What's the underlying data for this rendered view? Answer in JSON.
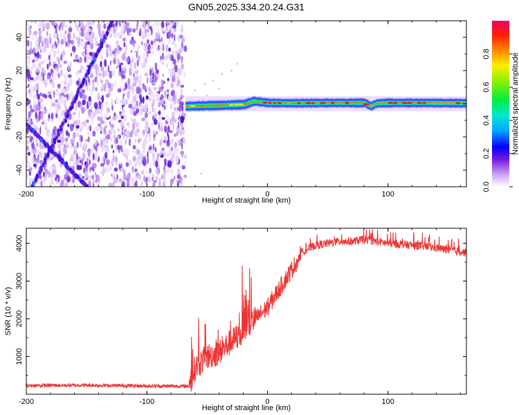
{
  "title": "GN05.2025.334.20.24.G31",
  "chart_data": [
    {
      "type": "heatmap",
      "name": "spectrogram",
      "xlabel": "Height of straight line (km)",
      "ylabel": "Frequency (Hz)",
      "xlim": [
        -200,
        165
      ],
      "ylim": [
        -50,
        50
      ],
      "xticks": [
        -200,
        -100,
        0,
        100
      ],
      "xtick_labels": [
        "-200",
        "-100",
        "0",
        "100"
      ],
      "yticks": [
        -40,
        -20,
        0,
        20,
        40
      ],
      "ytick_labels": [
        "-40",
        "-20",
        "0",
        "20",
        "40"
      ],
      "noise_region_x": [
        -200,
        -68
      ],
      "chirp_traces": [
        {
          "x": [
            -200,
            -150
          ],
          "y": [
            -12,
            -50
          ]
        },
        {
          "x": [
            -195,
            -128
          ],
          "y": [
            -50,
            50
          ]
        }
      ],
      "carrier_track": {
        "x": [
          -68,
          -40,
          -20,
          -12,
          0,
          20,
          50,
          80,
          85,
          90,
          100,
          130,
          165
        ],
        "y": [
          -1.5,
          -1,
          -0.5,
          1.5,
          0.5,
          0.3,
          0.5,
          0.5,
          -1.5,
          0.2,
          0.5,
          0.5,
          0.3
        ]
      },
      "colorbar": {
        "label": "Normalized spectral amplitude",
        "range": [
          0,
          1
        ],
        "ticks": [
          0.0,
          0.2,
          0.4,
          0.6,
          0.8
        ],
        "tick_labels": [
          "0.0",
          "0.2",
          "0.4",
          "0.6",
          "0.8"
        ]
      }
    },
    {
      "type": "line",
      "name": "snr",
      "xlabel": "Height of straight line (km)",
      "ylabel": "SNR (10 * v/v)",
      "xlim": [
        -200,
        165
      ],
      "ylim": [
        0,
        4400
      ],
      "xticks": [
        -200,
        -100,
        0,
        100
      ],
      "xtick_labels": [
        "-200",
        "-100",
        "0",
        "100"
      ],
      "yticks": [
        1000,
        2000,
        3000,
        4000
      ],
      "ytick_labels": [
        "1000",
        "2000",
        "3000",
        "4000"
      ],
      "series": [
        {
          "name": "SNR",
          "color": "#ee3333",
          "x": [
            -200,
            -150,
            -100,
            -65,
            -60,
            -55,
            -50,
            -40,
            -30,
            -20,
            -10,
            0,
            10,
            20,
            25,
            30,
            40,
            50,
            60,
            70,
            80,
            90,
            100,
            110,
            120,
            130,
            140,
            150,
            160,
            165
          ],
          "y": [
            230,
            240,
            220,
            215,
            700,
            850,
            1000,
            1100,
            1400,
            1650,
            2000,
            2300,
            2800,
            3300,
            3550,
            3800,
            3950,
            4000,
            4050,
            4050,
            4100,
            4050,
            4000,
            3980,
            3950,
            3920,
            3880,
            3820,
            3780,
            3750
          ]
        }
      ]
    }
  ]
}
